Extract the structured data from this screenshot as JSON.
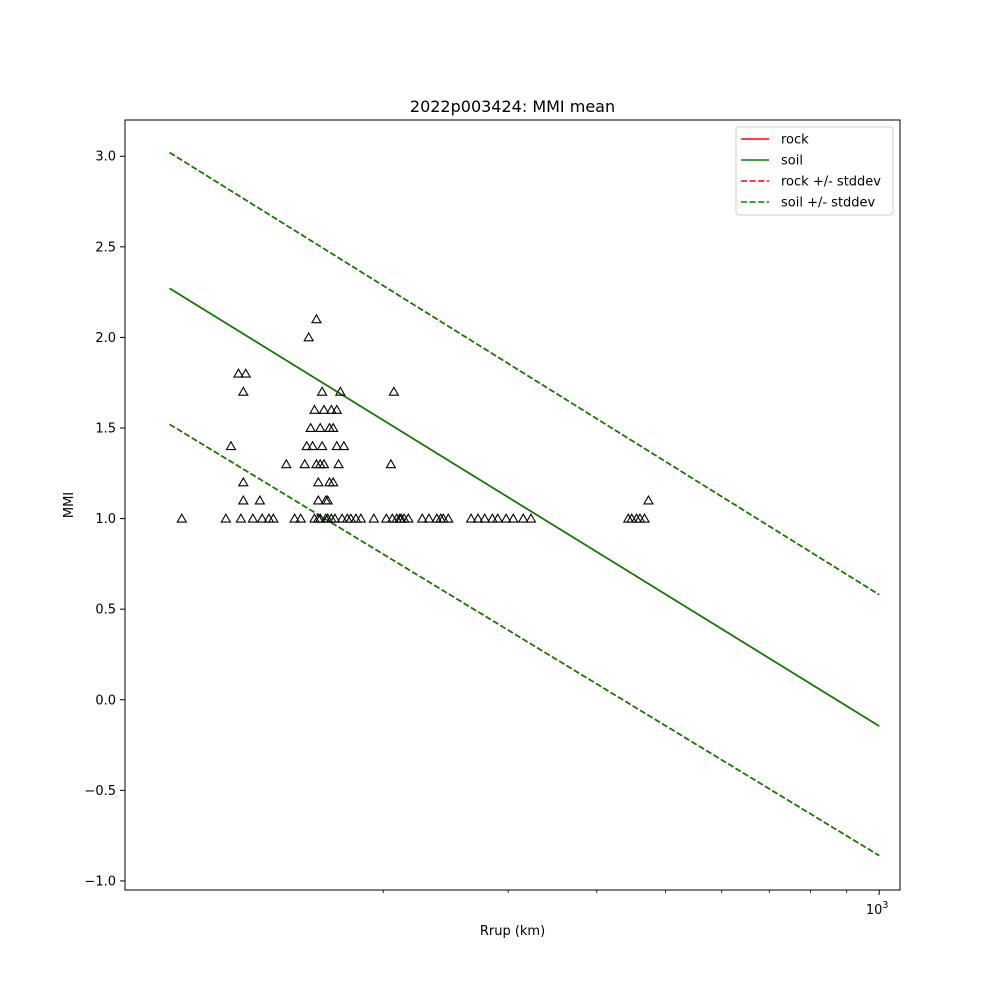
{
  "chart_data": {
    "type": "scatter",
    "title": "2022p003424: MMI mean",
    "xlabel": "Rrup (km)",
    "ylabel": "MMI",
    "x_scale": "log",
    "xlim": [
      86.5,
      1070
    ],
    "ylim": [
      -1.05,
      3.2
    ],
    "x_major_tick_labels": [
      {
        "value": 1000,
        "base": "10",
        "exp": "3"
      }
    ],
    "x_minor_ticks": [
      200,
      300,
      400,
      500,
      600,
      700,
      800,
      900
    ],
    "y_ticks": [
      {
        "value": 3.0,
        "label": "3.0"
      },
      {
        "value": 2.5,
        "label": "2.5"
      },
      {
        "value": 2.0,
        "label": "2.0"
      },
      {
        "value": 1.5,
        "label": "1.5"
      },
      {
        "value": 1.0,
        "label": "1.0"
      },
      {
        "value": 0.5,
        "label": "0.5"
      },
      {
        "value": 0.0,
        "label": "0.0"
      },
      {
        "value": -0.5,
        "label": "−0.5"
      },
      {
        "value": -1.0,
        "label": "−1.0"
      }
    ],
    "grid": false,
    "legend_position": "top-right",
    "legend": [
      {
        "label": "rock",
        "color": "#ff0000",
        "style": "solid"
      },
      {
        "label": "soil",
        "color": "#008000",
        "style": "solid"
      },
      {
        "label": "rock +/- stddev",
        "color": "#ff0000",
        "style": "dashed"
      },
      {
        "label": "soil +/- stddev",
        "color": "#008000",
        "style": "dashed"
      }
    ],
    "lines": [
      {
        "name": "rock",
        "style": "solid",
        "color": "#ff0000",
        "x": [
          100,
          1000
        ],
        "y": [
          2.27,
          -0.145
        ]
      },
      {
        "name": "soil",
        "style": "solid",
        "color": "#008000",
        "x": [
          100,
          1000
        ],
        "y": [
          2.27,
          -0.145
        ]
      },
      {
        "name": "rock +/- stddev",
        "style": "dashed",
        "color": "#ff0000",
        "x": [
          100,
          1000
        ],
        "y": [
          3.02,
          0.58
        ]
      },
      {
        "name": "rock +/- stddev",
        "style": "dashed",
        "color": "#ff0000",
        "x": [
          100,
          1000
        ],
        "y": [
          1.52,
          -0.86
        ]
      },
      {
        "name": "soil +/- stddev",
        "style": "dashed",
        "color": "#008000",
        "x": [
          100,
          1000
        ],
        "y": [
          3.02,
          0.58
        ]
      },
      {
        "name": "soil +/- stddev",
        "style": "dashed",
        "color": "#008000",
        "x": [
          100,
          1000
        ],
        "y": [
          1.52,
          -0.86
        ]
      }
    ],
    "points": [
      [
        104,
        1.0
      ],
      [
        122,
        1.4
      ],
      [
        125,
        1.8
      ],
      [
        127,
        1.7
      ],
      [
        127,
        1.2
      ],
      [
        127,
        1.1
      ],
      [
        128,
        1.8
      ],
      [
        120,
        1.0
      ],
      [
        126,
        1.0
      ],
      [
        131,
        1.0
      ],
      [
        134,
        1.1
      ],
      [
        135,
        1.0
      ],
      [
        138,
        1.0
      ],
      [
        140,
        1.0
      ],
      [
        146,
        1.3
      ],
      [
        150,
        1.0
      ],
      [
        153,
        1.0
      ],
      [
        155,
        1.3
      ],
      [
        156,
        1.4
      ],
      [
        157,
        2.0
      ],
      [
        158,
        1.5
      ],
      [
        159,
        1.4
      ],
      [
        160,
        1.0
      ],
      [
        160,
        1.6
      ],
      [
        161,
        2.1
      ],
      [
        161,
        1.3
      ],
      [
        162,
        1.2
      ],
      [
        162,
        1.0
      ],
      [
        162,
        1.1
      ],
      [
        163,
        1.3
      ],
      [
        163,
        1.5
      ],
      [
        163,
        1.0
      ],
      [
        164,
        1.4
      ],
      [
        164,
        1.7
      ],
      [
        165,
        1.3
      ],
      [
        165,
        1.6
      ],
      [
        166,
        1.1
      ],
      [
        166,
        1.0
      ],
      [
        167,
        1.1
      ],
      [
        167,
        1.0
      ],
      [
        168,
        1.2
      ],
      [
        168,
        1.5
      ],
      [
        169,
        1.6
      ],
      [
        169,
        1.0
      ],
      [
        170,
        1.5
      ],
      [
        170,
        1.2
      ],
      [
        171,
        1.0
      ],
      [
        172,
        1.4
      ],
      [
        172,
        1.6
      ],
      [
        173,
        1.3
      ],
      [
        174,
        1.7
      ],
      [
        175,
        1.0
      ],
      [
        176,
        1.4
      ],
      [
        178,
        1.0
      ],
      [
        180,
        1.0
      ],
      [
        183,
        1.0
      ],
      [
        186,
        1.0
      ],
      [
        194,
        1.0
      ],
      [
        202,
        1.0
      ],
      [
        205,
        1.3
      ],
      [
        206,
        1.0
      ],
      [
        207,
        1.7
      ],
      [
        209,
        1.0
      ],
      [
        211,
        1.0
      ],
      [
        212,
        1.0
      ],
      [
        214,
        1.0
      ],
      [
        217,
        1.0
      ],
      [
        227,
        1.0
      ],
      [
        232,
        1.0
      ],
      [
        238,
        1.0
      ],
      [
        241,
        1.0
      ],
      [
        243,
        1.0
      ],
      [
        247,
        1.0
      ],
      [
        266,
        1.0
      ],
      [
        272,
        1.0
      ],
      [
        278,
        1.0
      ],
      [
        285,
        1.0
      ],
      [
        290,
        1.0
      ],
      [
        298,
        1.0
      ],
      [
        305,
        1.0
      ],
      [
        315,
        1.0
      ],
      [
        323,
        1.0
      ],
      [
        443,
        1.0
      ],
      [
        448,
        1.0
      ],
      [
        455,
        1.0
      ],
      [
        460,
        1.0
      ],
      [
        467,
        1.0
      ],
      [
        473,
        1.1
      ]
    ]
  }
}
